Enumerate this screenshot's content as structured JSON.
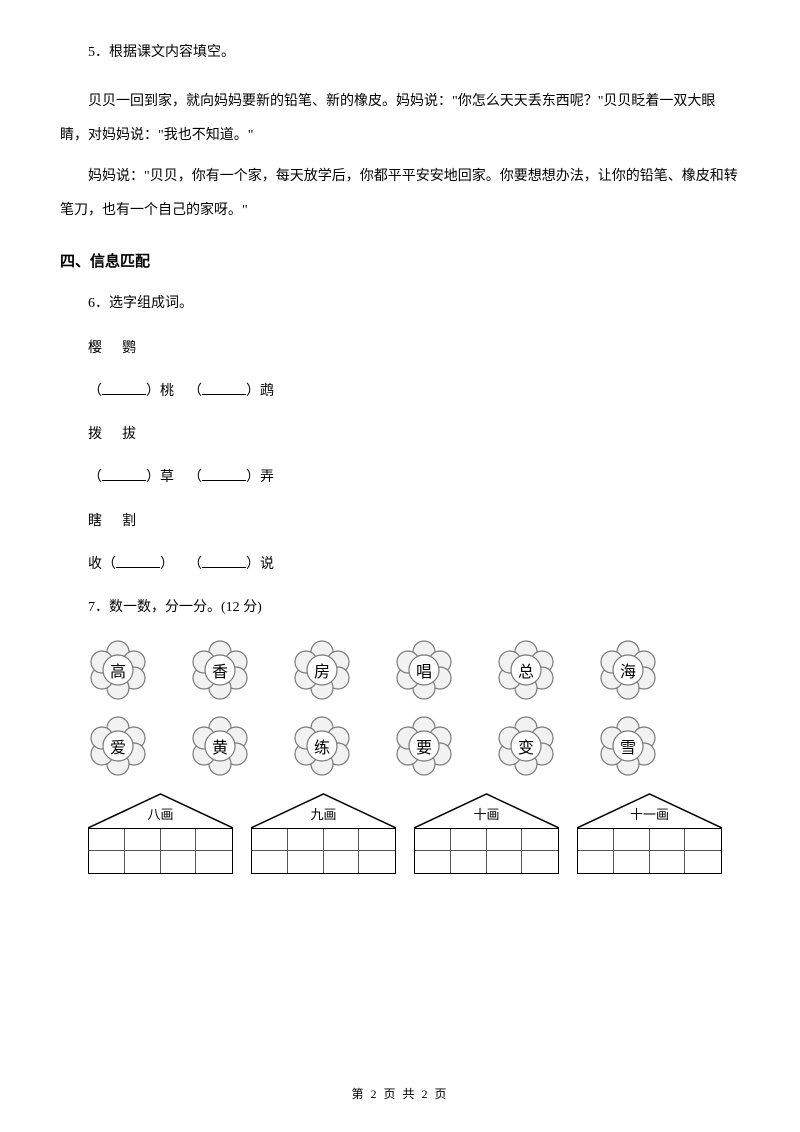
{
  "q5": {
    "num": "5．根据课文内容填空。",
    "p1": "贝贝一回到家，就向妈妈要新的铅笔、新的橡皮。妈妈说：\"你怎么天天丢东西呢？\"贝贝眨着一双大眼睛，对妈妈说：\"我也不知道。\"",
    "p2": "妈妈说：\"贝贝，你有一个家，每天放学后，你都平平安安地回家。你要想想办法，让你的铅笔、橡皮和转笔刀，也有一个自己的家呀。\""
  },
  "section4": "四、信息匹配",
  "q6": {
    "num": "6．选字组成词。",
    "pair1a": "樱",
    "pair1b": "鹦",
    "fill1a": "（",
    "fill1b": "）桃",
    "fill1c": "（",
    "fill1d": "）鹉",
    "pair2a": "拨",
    "pair2b": "拔",
    "fill2a": "（",
    "fill2b": "）草",
    "fill2c": "（",
    "fill2d": "）弄",
    "pair3a": "瞎",
    "pair3b": "割",
    "fill3a": "收（",
    "fill3b": "）",
    "fill3c": "（",
    "fill3d": "）说"
  },
  "q7": {
    "num": "7．数一数，分一分。(12 分)",
    "flowers_row1": [
      "高",
      "香",
      "房",
      "唱",
      "总",
      "海"
    ],
    "flowers_row2": [
      "爱",
      "黄",
      "练",
      "要",
      "变",
      "雪"
    ],
    "houses": [
      "八画",
      "九画",
      "十画",
      "十一画"
    ]
  },
  "footer": "第 2 页 共 2 页",
  "colors": {
    "text": "#000000",
    "bg": "#ffffff",
    "flower_stroke": "#7a7a7a",
    "flower_fill": "#f2f2f2",
    "house_stroke": "#000000"
  }
}
